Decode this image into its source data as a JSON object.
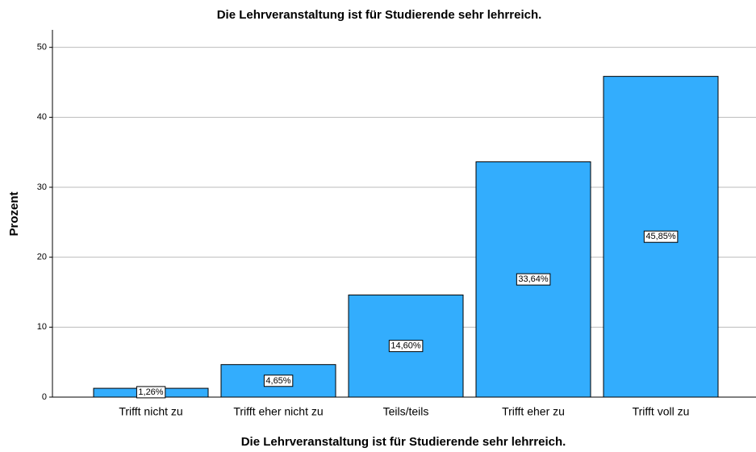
{
  "chart_data": {
    "type": "bar",
    "title": "Die Lehrveranstaltung ist für Studierende sehr lehrreich.",
    "xlabel": "Die Lehrveranstaltung ist für Studierende sehr lehrreich.",
    "ylabel": "Prozent",
    "categories": [
      "Trifft nicht zu",
      "Trifft eher nicht zu",
      "Teils/teils",
      "Trifft eher zu",
      "Trifft voll zu"
    ],
    "values": [
      1.26,
      4.65,
      14.6,
      33.64,
      45.85
    ],
    "value_labels": [
      "1,26%",
      "4,65%",
      "14,60%",
      "33,64%",
      "45,85%"
    ],
    "color": "#33adfd",
    "ylim": [
      0,
      52.5
    ],
    "yticks": [
      0,
      10,
      20,
      30,
      40,
      50
    ],
    "grid": true
  }
}
